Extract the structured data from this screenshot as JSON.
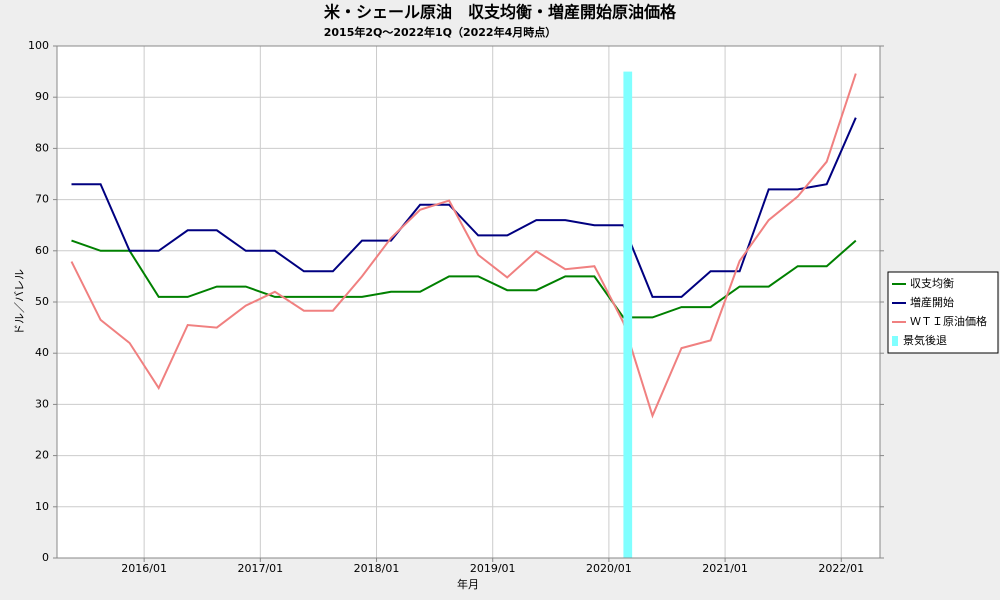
{
  "chart_data": {
    "type": "line",
    "title": "米・シェール原油　収支均衡・増産開始原油価格",
    "subtitle": "2015年2Q～2022年1Q（2022年4月時点）",
    "x_label": "年月",
    "y_label": "ドル／バレル",
    "x": [
      "2015/05",
      "2015/08",
      "2015/11",
      "2016/02",
      "2016/05",
      "2016/08",
      "2016/11",
      "2017/02",
      "2017/05",
      "2017/08",
      "2017/11",
      "2018/02",
      "2018/05",
      "2018/08",
      "2018/11",
      "2019/02",
      "2019/05",
      "2019/08",
      "2019/11",
      "2020/02",
      "2020/05",
      "2020/08",
      "2020/11",
      "2021/02",
      "2021/05",
      "2021/08",
      "2021/11",
      "2022/02"
    ],
    "xlim": [
      "2015/04",
      "2022/05"
    ],
    "xticks": [
      "2016/01",
      "2017/01",
      "2018/01",
      "2019/01",
      "2020/01",
      "2021/01",
      "2022/01"
    ],
    "ylim": [
      0,
      100
    ],
    "yticks": [
      0,
      10,
      20,
      30,
      40,
      50,
      60,
      70,
      80,
      90,
      100
    ],
    "grid": true,
    "legend": "right",
    "series": [
      {
        "name": "収支均衡",
        "color": "#008000",
        "values": [
          62,
          60,
          60,
          51,
          51,
          53,
          53,
          51,
          51,
          51,
          51,
          52,
          52,
          55,
          55,
          52.3,
          52.3,
          55,
          55,
          47,
          47,
          49,
          49,
          53,
          53,
          57,
          57,
          62
        ]
      },
      {
        "name": "増産開始",
        "color": "#000080",
        "values": [
          73,
          73,
          60,
          60,
          64,
          64,
          60,
          60,
          56,
          56,
          62,
          62,
          69,
          69,
          63,
          63,
          66,
          66,
          65,
          65,
          51,
          51,
          56,
          56,
          72,
          72,
          73,
          86
        ]
      },
      {
        "name": "ＷＴＩ原油価格",
        "color": "#f08080",
        "values": [
          57.9,
          46.5,
          42,
          33.2,
          45.5,
          45,
          49.3,
          52,
          48.3,
          48.3,
          55,
          62.5,
          68,
          69.8,
          59.2,
          54.8,
          59.9,
          56.4,
          57,
          46,
          27.8,
          41,
          42.5,
          58,
          66,
          70.6,
          77.4,
          94.6
        ]
      },
      {
        "name": "景気後退",
        "color": "#80ffff",
        "type": "bar",
        "values": [
          null,
          null,
          null,
          null,
          null,
          null,
          null,
          null,
          null,
          null,
          null,
          null,
          null,
          null,
          null,
          null,
          null,
          null,
          null,
          95,
          null,
          null,
          null,
          null,
          null,
          null,
          null,
          null
        ]
      }
    ]
  }
}
